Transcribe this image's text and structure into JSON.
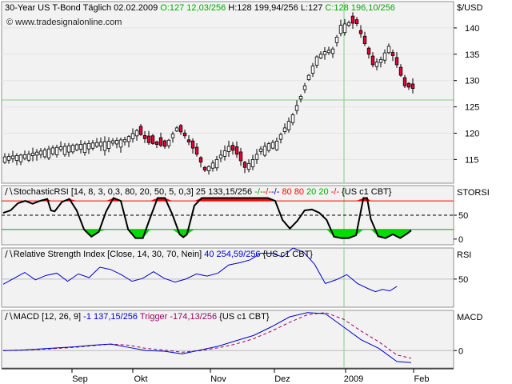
{
  "price_header": {
    "main": "30-Year US T-Bond Täglich  02.02.2009  ",
    "ohlc_o": "O:127 12,03/256",
    "ohlc_h": " H:128 199,94/256 L:127 ",
    "ohlc_c": "C:128 196,10/256"
  },
  "watermark": "© www.tradesignalonline.com",
  "stoch_header": {
    "main": "StochasticRSI [14, 8, 3, 0,3, 80, 20, 50, 5, 0,3] 25 133,15/256 ",
    "dashes_green": "-/-",
    "dashes_red": "-/-",
    "dashes_blue": "-/-",
    "val80": " 80 80 ",
    "val20": "20 20 ",
    "dashes_red2": "-/-",
    "dashes_red3": "-/-",
    "tail": " {US c1 CBT}"
  },
  "rsi_header": {
    "main": "Relative Strength Index [Close, 14, 30, 70, Nein] ",
    "value": "40 254,59/256",
    "tail": " {US c1 CBT}"
  },
  "macd_header": {
    "main": "MACD [12, 26, 9] ",
    "value": "-1 137,15/256",
    "trigger": " Trigger -174,13/256",
    "tail": " {US c1 CBT}"
  },
  "colors": {
    "up_candle": "#ffffff",
    "down_candle": "#e8003a",
    "stoch_line": "#000000",
    "overbought_fill": "#ff0000",
    "oversold_fill": "#00dd00",
    "rsi_line": "#0000cc",
    "macd_line": "#0000cc",
    "trigger_line": "#990066",
    "crosshair": "#88cc88"
  },
  "chart_data": [
    {
      "type": "candlestick",
      "name": "price",
      "unit_label": "$/USD",
      "yticks": [
        115,
        120,
        125,
        130,
        135,
        140
      ],
      "ylim": [
        110.5,
        145
      ],
      "x_labels": [
        "Sep",
        "Okt",
        "Nov",
        "Dez",
        "2009",
        "Feb"
      ],
      "close_path": [
        [
          0,
          115.5
        ],
        [
          6,
          116.0
        ],
        [
          12,
          117.2
        ],
        [
          18,
          117.8
        ],
        [
          24,
          118.3
        ],
        [
          30,
          118.8
        ],
        [
          33,
          120.5
        ],
        [
          36,
          118.2
        ],
        [
          40,
          117.5
        ],
        [
          43,
          121.0
        ],
        [
          45,
          119.5
        ],
        [
          48,
          116.0
        ],
        [
          50,
          113.0
        ],
        [
          53,
          115.0
        ],
        [
          56,
          117.5
        ],
        [
          58,
          116.0
        ],
        [
          60,
          113.5
        ],
        [
          62,
          115.0
        ],
        [
          64,
          117.0
        ],
        [
          66,
          118.0
        ],
        [
          68,
          118.5
        ],
        [
          70,
          121.0
        ],
        [
          72,
          123.5
        ],
        [
          74,
          127.0
        ],
        [
          76,
          131.0
        ],
        [
          78,
          134.5
        ],
        [
          80,
          135.5
        ],
        [
          82,
          136.0
        ],
        [
          84,
          140.5
        ],
        [
          86,
          141.0
        ],
        [
          88,
          140.8
        ],
        [
          90,
          137.0
        ],
        [
          92,
          133.0
        ],
        [
          94,
          134.0
        ],
        [
          96,
          136.5
        ],
        [
          98,
          133.0
        ],
        [
          100,
          129.0
        ],
        [
          102,
          128.5
        ]
      ],
      "bars": 103
    },
    {
      "type": "line",
      "name": "StochasticRSI",
      "yticks": [
        0,
        50
      ],
      "ylim": [
        -12,
        112
      ],
      "levels": [
        80,
        50,
        20
      ],
      "points": [
        [
          0,
          55
        ],
        [
          2,
          60
        ],
        [
          4,
          75
        ],
        [
          6,
          80
        ],
        [
          8,
          74
        ],
        [
          10,
          80
        ],
        [
          12,
          84
        ],
        [
          13,
          60
        ],
        [
          14,
          58
        ],
        [
          16,
          78
        ],
        [
          18,
          84
        ],
        [
          20,
          60
        ],
        [
          22,
          20
        ],
        [
          24,
          5
        ],
        [
          26,
          15
        ],
        [
          28,
          58
        ],
        [
          30,
          86
        ],
        [
          32,
          80
        ],
        [
          34,
          20
        ],
        [
          36,
          2
        ],
        [
          38,
          2
        ],
        [
          40,
          45
        ],
        [
          42,
          86
        ],
        [
          44,
          86
        ],
        [
          46,
          52
        ],
        [
          48,
          10
        ],
        [
          49,
          4
        ],
        [
          50,
          10
        ],
        [
          52,
          70
        ],
        [
          54,
          86
        ],
        [
          56,
          86
        ],
        [
          58,
          86
        ],
        [
          60,
          86
        ],
        [
          62,
          86
        ],
        [
          64,
          86
        ],
        [
          66,
          86
        ],
        [
          68,
          86
        ],
        [
          70,
          86
        ],
        [
          72,
          86
        ],
        [
          74,
          80
        ],
        [
          76,
          40
        ],
        [
          78,
          22
        ],
        [
          80,
          38
        ],
        [
          82,
          60
        ],
        [
          84,
          62
        ],
        [
          86,
          55
        ],
        [
          88,
          40
        ],
        [
          90,
          5
        ],
        [
          92,
          2
        ],
        [
          94,
          2
        ],
        [
          96,
          8
        ],
        [
          98,
          86
        ],
        [
          99,
          86
        ],
        [
          100,
          42
        ],
        [
          102,
          6
        ],
        [
          104,
          2
        ],
        [
          106,
          10
        ],
        [
          108,
          2
        ],
        [
          110,
          12
        ],
        [
          111,
          18
        ]
      ]
    },
    {
      "type": "line",
      "name": "Relative Strength Index",
      "yticks": [
        50
      ],
      "ylim": [
        12,
        92
      ],
      "points": [
        [
          0,
          43
        ],
        [
          3,
          51
        ],
        [
          6,
          59
        ],
        [
          9,
          49
        ],
        [
          12,
          55
        ],
        [
          15,
          58
        ],
        [
          18,
          47
        ],
        [
          21,
          57
        ],
        [
          24,
          52
        ],
        [
          27,
          66
        ],
        [
          30,
          63
        ],
        [
          33,
          56
        ],
        [
          36,
          47
        ],
        [
          39,
          51
        ],
        [
          42,
          60
        ],
        [
          45,
          51
        ],
        [
          48,
          46
        ],
        [
          51,
          50
        ],
        [
          54,
          57
        ],
        [
          57,
          54
        ],
        [
          60,
          58
        ],
        [
          63,
          69
        ],
        [
          66,
          72
        ],
        [
          69,
          76
        ],
        [
          72,
          85
        ],
        [
          75,
          85
        ],
        [
          78,
          80
        ],
        [
          81,
          92
        ],
        [
          84,
          86
        ],
        [
          87,
          70
        ],
        [
          90,
          44
        ],
        [
          93,
          49
        ],
        [
          96,
          56
        ],
        [
          99,
          44
        ],
        [
          102,
          37
        ],
        [
          104,
          33
        ],
        [
          106,
          36
        ],
        [
          108,
          34
        ],
        [
          110,
          40
        ]
      ]
    },
    {
      "type": "line",
      "name": "MACD",
      "yticks": [
        0
      ],
      "ylim": [
        -1.6,
        3.7
      ],
      "series": [
        {
          "name": "MACD",
          "points": [
            [
              0,
              0.0
            ],
            [
              5,
              0.05
            ],
            [
              10,
              0.15
            ],
            [
              15,
              0.25
            ],
            [
              20,
              0.35
            ],
            [
              25,
              0.5
            ],
            [
              30,
              0.6
            ],
            [
              35,
              0.3
            ],
            [
              40,
              0.0
            ],
            [
              45,
              -0.05
            ],
            [
              50,
              -0.3
            ],
            [
              55,
              0.05
            ],
            [
              60,
              0.4
            ],
            [
              65,
              0.9
            ],
            [
              70,
              1.4
            ],
            [
              75,
              2.2
            ],
            [
              80,
              3.1
            ],
            [
              85,
              3.5
            ],
            [
              90,
              3.4
            ],
            [
              95,
              2.2
            ],
            [
              100,
              1.0
            ],
            [
              105,
              0.2
            ],
            [
              110,
              -1.0
            ],
            [
              114,
              -1.1
            ]
          ]
        },
        {
          "name": "Trigger",
          "points": [
            [
              0,
              0.0
            ],
            [
              5,
              0.05
            ],
            [
              10,
              0.1
            ],
            [
              15,
              0.2
            ],
            [
              20,
              0.3
            ],
            [
              25,
              0.45
            ],
            [
              30,
              0.6
            ],
            [
              35,
              0.5
            ],
            [
              40,
              0.2
            ],
            [
              45,
              0.05
            ],
            [
              50,
              -0.15
            ],
            [
              55,
              0.0
            ],
            [
              60,
              0.25
            ],
            [
              65,
              0.6
            ],
            [
              70,
              1.1
            ],
            [
              75,
              1.8
            ],
            [
              80,
              2.6
            ],
            [
              85,
              3.3
            ],
            [
              90,
              3.5
            ],
            [
              95,
              2.9
            ],
            [
              100,
              1.8
            ],
            [
              105,
              0.8
            ],
            [
              110,
              -0.4
            ],
            [
              114,
              -0.7
            ]
          ]
        }
      ]
    }
  ]
}
